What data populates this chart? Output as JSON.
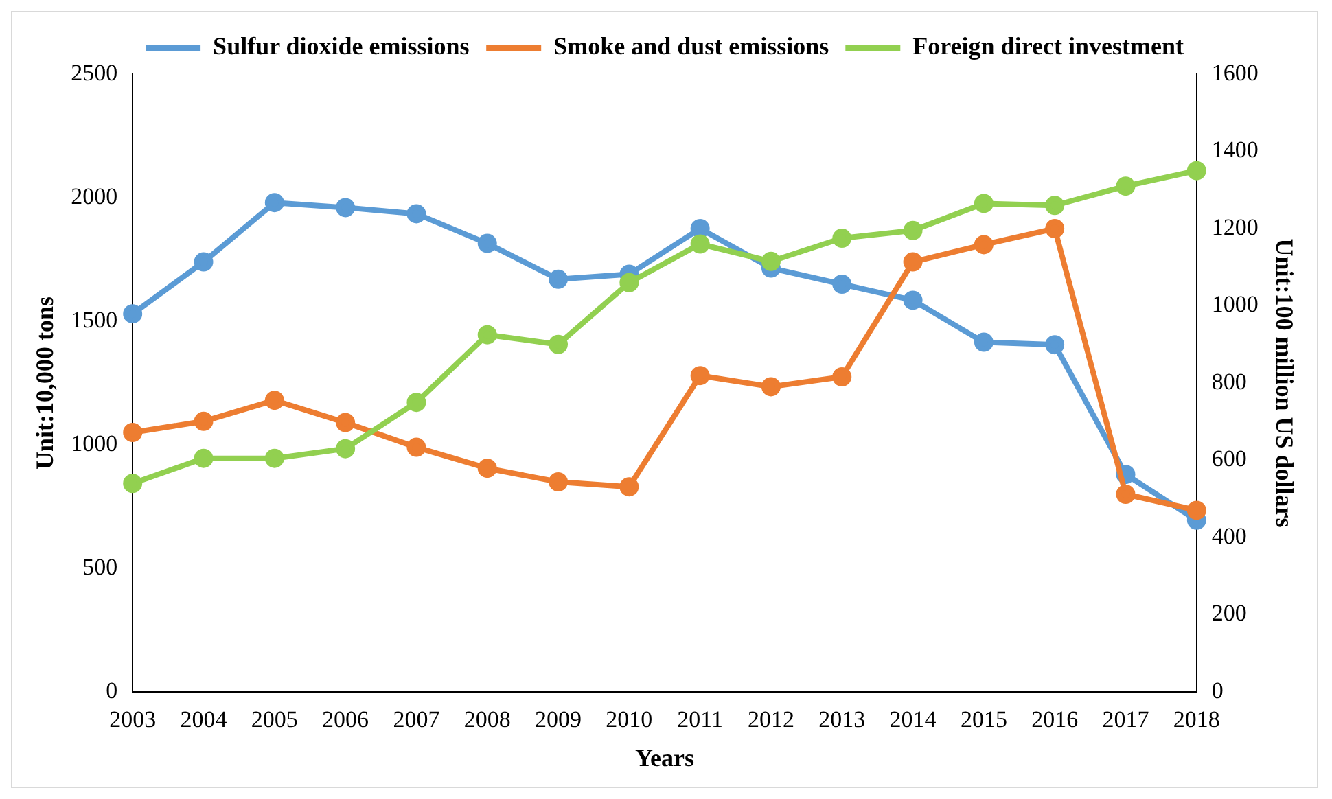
{
  "chart_data": {
    "type": "line",
    "xlabel": "Years",
    "ylabel": "Unit:10,000 tons",
    "y2label": "Unit:100 million US dollars",
    "categories": [
      "2003",
      "2004",
      "2005",
      "2006",
      "2007",
      "2008",
      "2009",
      "2010",
      "2011",
      "2012",
      "2013",
      "2014",
      "2015",
      "2016",
      "2017",
      "2018"
    ],
    "series": [
      {
        "name": "Sulfur dioxide emissions",
        "color": "#5b9bd5",
        "values": [
          1530,
          1740,
          1980,
          1960,
          1935,
          1815,
          1670,
          1690,
          1875,
          1715,
          1650,
          1585,
          1415,
          1405,
          880,
          695
        ]
      },
      {
        "name": "Smoke and dust emissions",
        "color": "#ed7d31",
        "values": [
          1050,
          1095,
          1180,
          1090,
          990,
          905,
          850,
          830,
          1280,
          1235,
          1275,
          1740,
          1810,
          1875,
          800,
          735
        ]
      },
      {
        "name": "Foreign direct investment",
        "color": "#92d050",
        "axis": "y2",
        "values": [
          540,
          605,
          605,
          630,
          750,
          925,
          900,
          1060,
          1160,
          1115,
          1175,
          1195,
          1265,
          1260,
          1310,
          1350
        ]
      }
    ],
    "ylim": [
      0,
      2500
    ],
    "yticks": [
      0,
      500,
      1000,
      1500,
      2000,
      2500
    ],
    "y2lim": [
      0,
      1600
    ],
    "y2ticks": [
      0,
      200,
      400,
      600,
      800,
      1000,
      1200,
      1400,
      1600
    ],
    "grid": false,
    "legend": "top",
    "marker": "circle",
    "line_style": "solid"
  }
}
